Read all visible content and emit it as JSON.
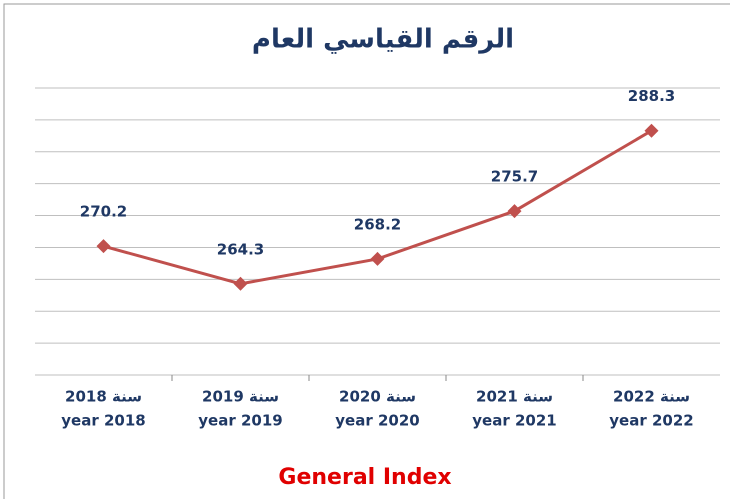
{
  "chart_data": {
    "type": "line",
    "title": "الرقم القياسي العام",
    "categories": [
      [
        "سنة 2018",
        "year 2018"
      ],
      [
        "سنة 2019",
        "year 2019"
      ],
      [
        "سنة 2020",
        "year 2020"
      ],
      [
        "سنة 2021",
        "year 2021"
      ],
      [
        "سنة 2022",
        "year 2022"
      ]
    ],
    "series": [
      {
        "name": "General Index",
        "color": "#c0504d",
        "values": [
          270.2,
          264.3,
          268.2,
          275.7,
          288.3
        ]
      }
    ],
    "ylim": [
      250,
      295
    ],
    "yticks": [
      250,
      255,
      260,
      265,
      270,
      275,
      280,
      285,
      290,
      295
    ],
    "grid": true
  }
}
